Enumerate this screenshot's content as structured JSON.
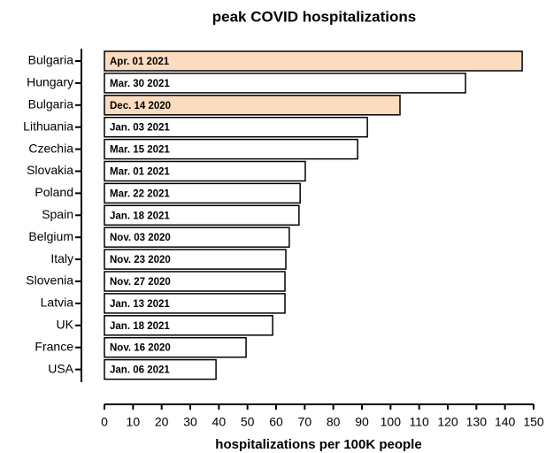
{
  "chart_data": {
    "type": "hbar",
    "title": "peak COVID hospitalizations",
    "x_label": "hospitalizations per 100K people",
    "categories": [
      "Bulgaria",
      "Hungary",
      "Bulgaria",
      "Lithuania",
      "Czechia",
      "Slovakia",
      "Poland",
      "Spain",
      "Belgium",
      "Italy",
      "Slovenia",
      "Latvia",
      "UK",
      "France",
      "USA"
    ],
    "values": [
      146,
      126.2,
      103.3,
      91.9,
      88.5,
      70.2,
      68.4,
      68,
      64.6,
      63.4,
      63.1,
      63.1,
      58.8,
      49.5,
      39
    ],
    "dates": [
      "Apr. 01 2021",
      "Mar. 30 2021",
      "Dec. 14 2020",
      "Jan. 03 2021",
      "Mar. 15 2021",
      "Mar. 01 2021",
      "Mar. 22 2021",
      "Jan. 18 2021",
      "Nov. 03 2020",
      "Nov. 23 2020",
      "Nov. 27 2020",
      "Jan. 13 2021",
      "Jan. 18 2021",
      "Nov. 16 2020",
      "Jan. 06 2021"
    ],
    "colors": [
      "#fcdcbf",
      "#ffffff",
      "#fcdcbf",
      "#ffffff",
      "#ffffff",
      "#ffffff",
      "#ffffff",
      "#ffffff",
      "#ffffff",
      "#ffffff",
      "#ffffff",
      "#ffffff",
      "#ffffff",
      "#ffffff",
      "#ffffff"
    ],
    "xlim": [
      0,
      150
    ],
    "xticks": [
      0,
      10,
      20,
      30,
      40,
      50,
      60,
      70,
      80,
      90,
      100,
      110,
      120,
      130,
      140,
      150
    ]
  }
}
